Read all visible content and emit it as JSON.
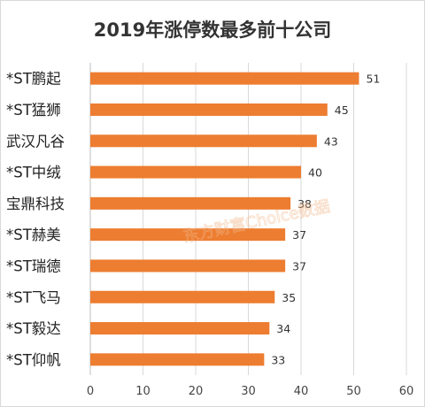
{
  "chart_data": {
    "type": "bar",
    "orientation": "horizontal",
    "title": "2019年涨停数最多前十公司",
    "categories": [
      "*ST鹏起",
      "*ST猛狮",
      "武汉凡谷",
      "*ST中绒",
      "宝鼎科技",
      "*ST赫美",
      "*ST瑞德",
      "*ST飞马",
      "*ST毅达",
      "*ST仰帆"
    ],
    "values": [
      51,
      45,
      43,
      40,
      38,
      37,
      37,
      35,
      34,
      33
    ],
    "xlim": [
      0,
      60
    ],
    "xticks": [
      0,
      10,
      20,
      30,
      40,
      50,
      60
    ],
    "grid": true,
    "bar_color": "#ed7d31"
  },
  "watermark": "东方财富Choice数据"
}
